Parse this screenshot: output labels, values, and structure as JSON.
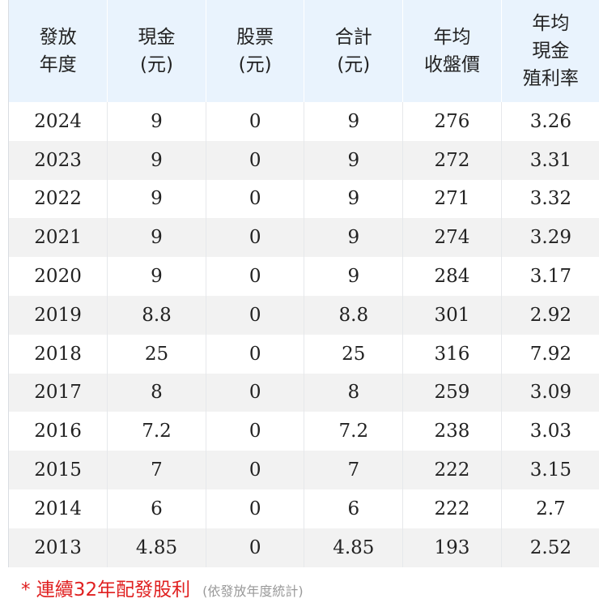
{
  "table": {
    "headers": [
      [
        "發放",
        "年度"
      ],
      [
        "現金",
        "(元)"
      ],
      [
        "股票",
        "(元)"
      ],
      [
        "合計",
        "(元)"
      ],
      [
        "年均",
        "收盤價"
      ],
      [
        "年均",
        "現金",
        "殖利率"
      ]
    ],
    "rows": [
      [
        "2024",
        "9",
        "0",
        "9",
        "276",
        "3.26"
      ],
      [
        "2023",
        "9",
        "0",
        "9",
        "272",
        "3.31"
      ],
      [
        "2022",
        "9",
        "0",
        "9",
        "271",
        "3.32"
      ],
      [
        "2021",
        "9",
        "0",
        "9",
        "274",
        "3.29"
      ],
      [
        "2020",
        "9",
        "0",
        "9",
        "284",
        "3.17"
      ],
      [
        "2019",
        "8.8",
        "0",
        "8.8",
        "301",
        "2.92"
      ],
      [
        "2018",
        "25",
        "0",
        "25",
        "316",
        "7.92"
      ],
      [
        "2017",
        "8",
        "0",
        "8",
        "259",
        "3.09"
      ],
      [
        "2016",
        "7.2",
        "0",
        "7.2",
        "238",
        "3.03"
      ],
      [
        "2015",
        "7",
        "0",
        "7",
        "222",
        "3.15"
      ],
      [
        "2014",
        "6",
        "0",
        "6",
        "222",
        "2.7"
      ],
      [
        "2013",
        "4.85",
        "0",
        "4.85",
        "193",
        "2.52"
      ]
    ]
  },
  "footnote": {
    "main": "* 連續32年配發股利",
    "sub": "(依發放年度統計)"
  }
}
